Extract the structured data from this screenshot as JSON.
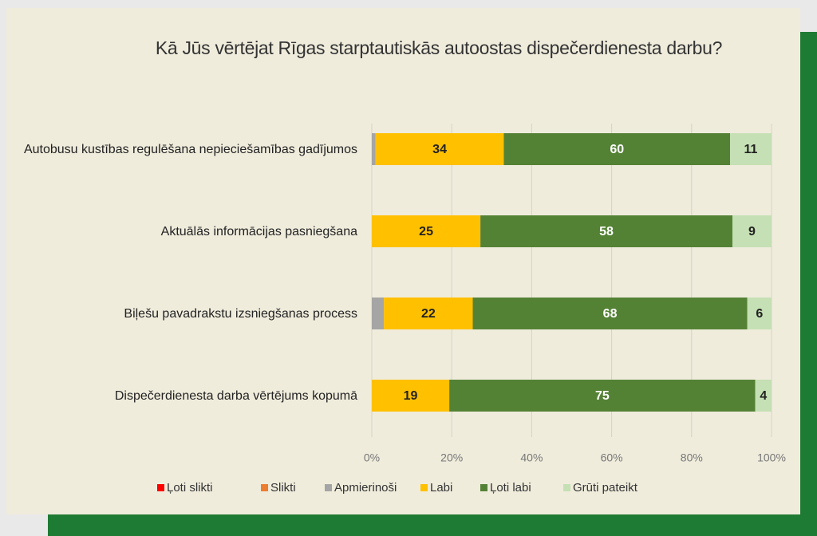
{
  "chart_data": {
    "type": "bar",
    "orientation": "horizontal",
    "stacked": "percent",
    "title": "Kā Jūs vērtējat Rīgas starptautiskās autoostas dispečerdienesta darbu?",
    "categories": [
      "Autobusu kustības regulēšana nepieciešamības gadījumos",
      "Aktuālās informācijas pasniegšana",
      "Biļešu pavadrakstu izsniegšanas process",
      "Dispečerdienesta darba vērtējums kopumā"
    ],
    "series": [
      {
        "name": "Ļoti slikti",
        "color": "#ff0000",
        "values": [
          0,
          0,
          0,
          0
        ]
      },
      {
        "name": "Slikti",
        "color": "#ed7d31",
        "values": [
          0,
          0,
          0,
          0
        ]
      },
      {
        "name": "Apmierinoši",
        "color": "#a5a5a5",
        "values": [
          1,
          0,
          3,
          0
        ]
      },
      {
        "name": "Labi",
        "color": "#ffc000",
        "values": [
          34,
          25,
          22,
          19
        ]
      },
      {
        "name": "Ļoti labi",
        "color": "#548235",
        "values": [
          60,
          58,
          68,
          75
        ]
      },
      {
        "name": "Grūti pateikt",
        "color": "#c5e0b4",
        "values": [
          11,
          9,
          6,
          4
        ]
      }
    ],
    "xlim": [
      0,
      100
    ],
    "xticks": [
      {
        "value": 0,
        "label": "0%"
      },
      {
        "value": 20,
        "label": "20%"
      },
      {
        "value": 40,
        "label": "40%"
      },
      {
        "value": 60,
        "label": "60%"
      },
      {
        "value": 80,
        "label": "80%"
      },
      {
        "value": 100,
        "label": "100%"
      }
    ],
    "grid": true,
    "legend": "bottom"
  }
}
